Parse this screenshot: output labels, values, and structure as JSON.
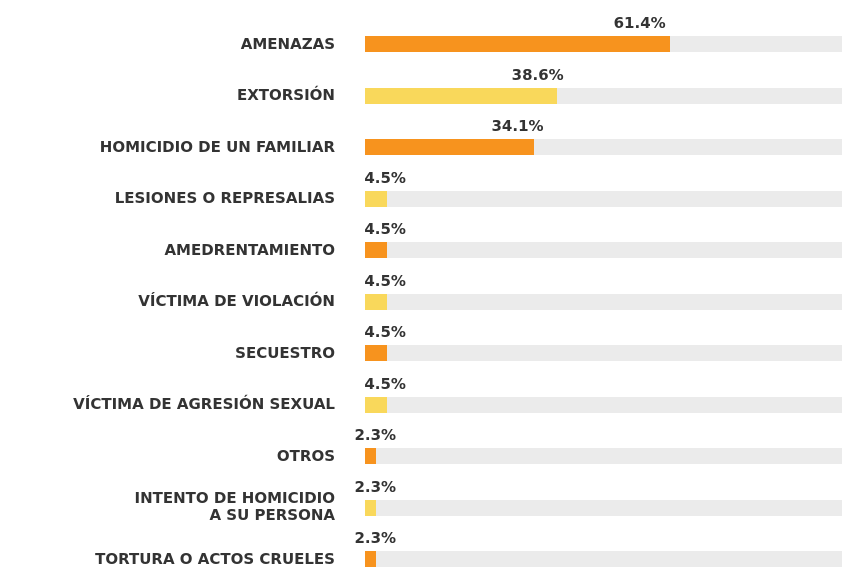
{
  "chart_data": {
    "type": "bar",
    "orientation": "horizontal",
    "categories": [
      "AMENAZAS",
      "EXTORSIÓN",
      "HOMICIDIO DE UN FAMILIAR",
      "LESIONES O REPRESALIAS",
      "AMEDRENTAMIENTO",
      "VÍCTIMA DE VIOLACIÓN",
      "SECUESTRO",
      "VÍCTIMA DE AGRESIÓN SEXUAL",
      "OTROS",
      "INTENTO DE HOMICIDIO\nA SU PERSONA",
      "TORTURA O ACTOS CRUELES"
    ],
    "values": [
      61.4,
      38.6,
      34.1,
      4.5,
      4.5,
      4.5,
      4.5,
      4.5,
      2.3,
      2.3,
      2.3
    ],
    "value_labels": [
      "61.4%",
      "38.6%",
      "34.1%",
      "4.5%",
      "4.5%",
      "4.5%",
      "4.5%",
      "4.5%",
      "2.3%",
      "2.3%",
      "2.3%"
    ],
    "colors": [
      "#f7931e",
      "#f9d85b"
    ],
    "xlim": [
      0,
      100
    ]
  }
}
